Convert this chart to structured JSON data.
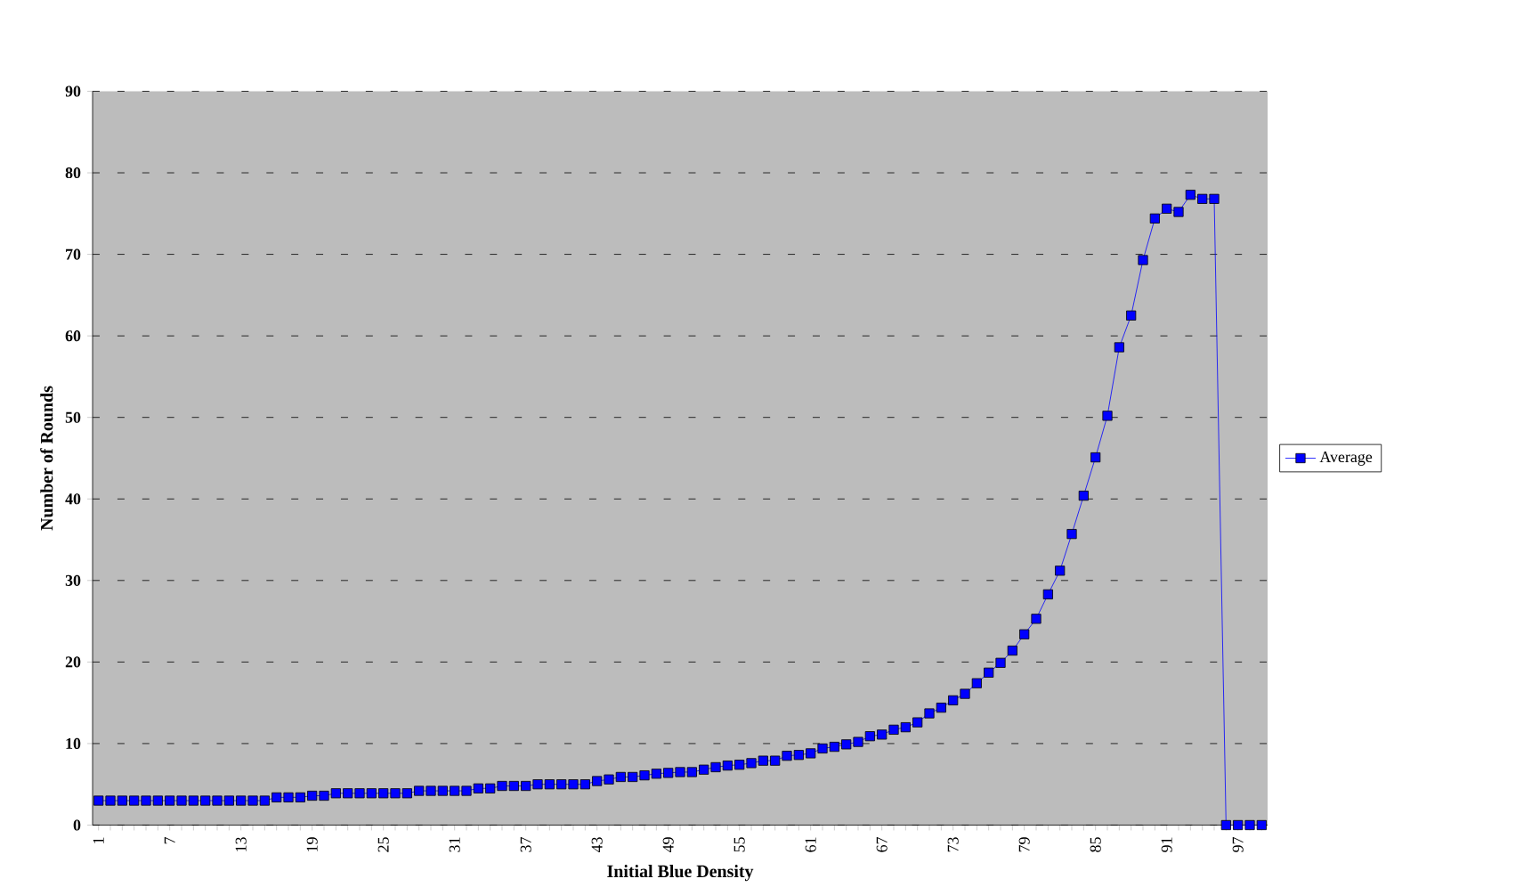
{
  "chart_data": {
    "type": "line",
    "xlabel": "Initial Blue Density",
    "ylabel": "Number of Rounds",
    "categories": [
      "1",
      null,
      null,
      null,
      null,
      null,
      "7",
      null,
      null,
      null,
      null,
      null,
      "13",
      null,
      null,
      null,
      null,
      null,
      "19",
      null,
      null,
      null,
      null,
      null,
      "25",
      null,
      null,
      null,
      null,
      null,
      "31",
      null,
      null,
      null,
      null,
      null,
      "37",
      null,
      null,
      null,
      null,
      null,
      "43",
      null,
      null,
      null,
      null,
      null,
      "49",
      null,
      null,
      null,
      null,
      null,
      "55",
      null,
      null,
      null,
      null,
      null,
      "61",
      null,
      null,
      null,
      null,
      null,
      "67",
      null,
      null,
      null,
      null,
      null,
      "73",
      null,
      null,
      null,
      null,
      null,
      "79",
      null,
      null,
      null,
      null,
      null,
      "85",
      null,
      null,
      null,
      null,
      null,
      "91",
      null,
      null,
      null,
      null,
      null,
      "97",
      null,
      null
    ],
    "series": [
      {
        "name": "Average",
        "color": "#0000ff",
        "values": [
          3.0,
          3.0,
          3.0,
          3.0,
          3.0,
          3.0,
          3.0,
          3.0,
          3.0,
          3.0,
          3.0,
          3.0,
          3.0,
          3.0,
          3.0,
          3.4,
          3.4,
          3.4,
          3.6,
          3.6,
          3.9,
          3.9,
          3.9,
          3.9,
          3.9,
          3.9,
          3.9,
          4.2,
          4.2,
          4.2,
          4.2,
          4.2,
          4.5,
          4.5,
          4.8,
          4.8,
          4.8,
          5.0,
          5.0,
          5.0,
          5.0,
          5.0,
          5.4,
          5.6,
          5.9,
          5.9,
          6.1,
          6.3,
          6.4,
          6.5,
          6.5,
          6.8,
          7.1,
          7.3,
          7.4,
          7.6,
          7.9,
          7.9,
          8.5,
          8.6,
          8.8,
          9.4,
          9.6,
          9.9,
          10.2,
          10.9,
          11.1,
          11.7,
          12.0,
          12.6,
          13.7,
          14.4,
          15.3,
          16.1,
          17.4,
          18.7,
          19.9,
          21.4,
          23.4,
          25.3,
          28.3,
          31.2,
          35.7,
          40.4,
          45.1,
          50.2,
          58.6,
          62.5,
          69.3,
          74.4,
          75.6,
          75.2,
          77.3,
          76.8,
          76.8,
          0,
          0,
          0,
          0
        ]
      }
    ],
    "ylim": [
      0,
      90
    ],
    "yticks": [
      0,
      10,
      20,
      30,
      40,
      50,
      60,
      70,
      80,
      90
    ],
    "grid": "y",
    "legend": "right",
    "marker": "square",
    "line_style": "solid"
  }
}
